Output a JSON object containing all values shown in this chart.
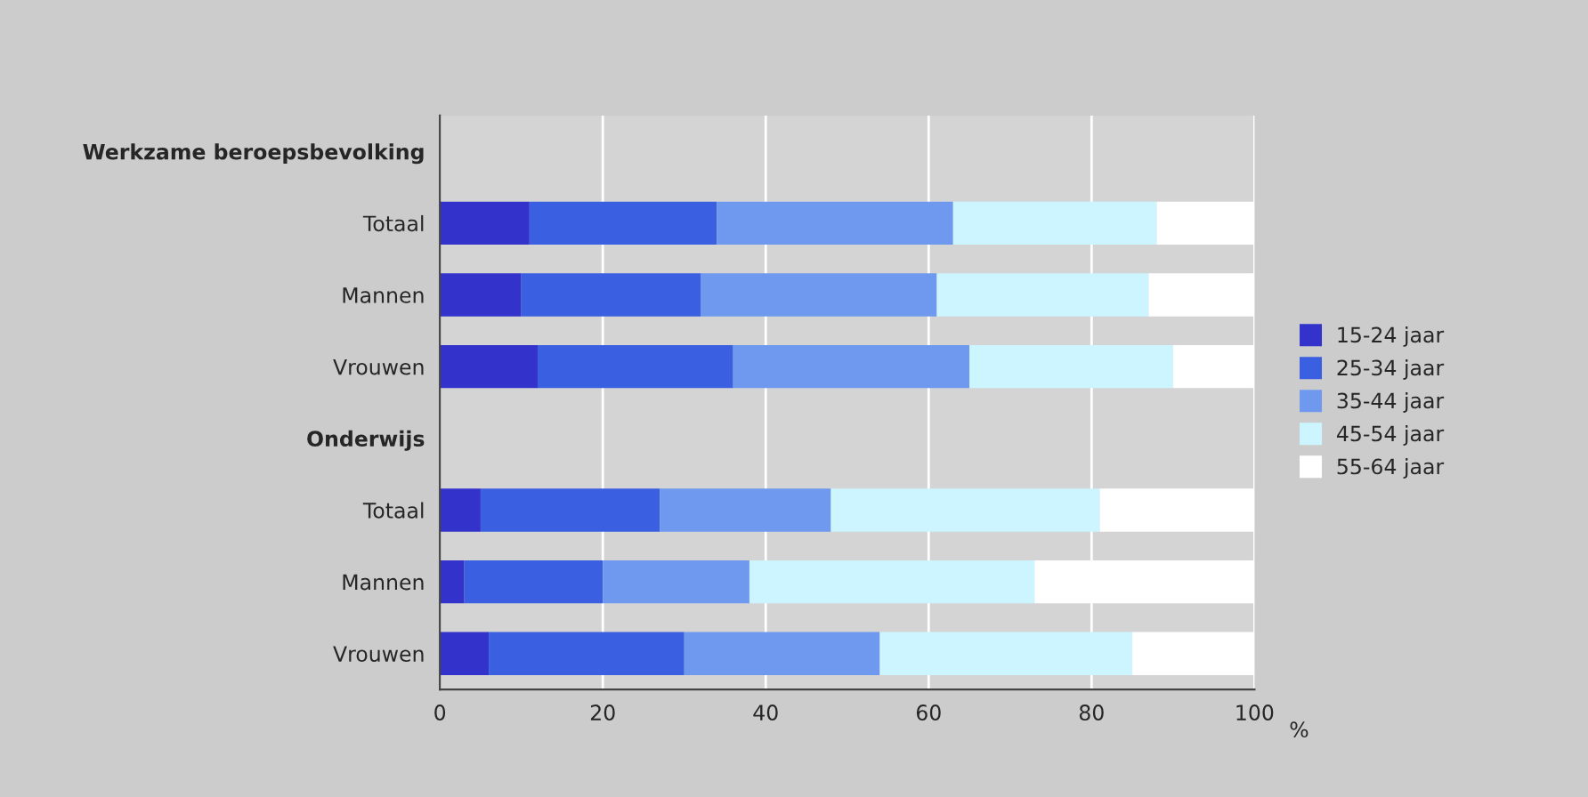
{
  "chart_data": {
    "type": "bar",
    "orientation": "horizontal",
    "stacked": true,
    "categories": [
      "Werkzame beroepsbevolking",
      "Totaal",
      "Mannen",
      "Vrouwen",
      "Onderwijs",
      "Totaal",
      "Mannen",
      "Vrouwen"
    ],
    "xlabel": "%",
    "series": [
      {
        "name": "15-24 jaar",
        "color": "#3333cc",
        "values": [
          null,
          11,
          10,
          12,
          null,
          5,
          3,
          6
        ]
      },
      {
        "name": "25-34 jaar",
        "color": "#3a5fe0",
        "values": [
          null,
          23,
          22,
          24,
          null,
          22,
          17,
          24
        ]
      },
      {
        "name": "35-44 jaar",
        "color": "#6f99ee",
        "values": [
          null,
          29,
          29,
          29,
          null,
          21,
          18,
          24
        ]
      },
      {
        "name": "45-54 jaar",
        "color": "#ccf5ff",
        "values": [
          null,
          25,
          26,
          25,
          null,
          33,
          35,
          31
        ]
      },
      {
        "name": "55-64 jaar",
        "color": "#ffffff",
        "values": [
          null,
          12,
          13,
          10,
          null,
          19,
          27,
          15
        ]
      }
    ],
    "xlim": [
      0,
      100
    ],
    "xticks": [
      0,
      20,
      40,
      60,
      80,
      100
    ],
    "grid": "x",
    "legend": "right"
  }
}
